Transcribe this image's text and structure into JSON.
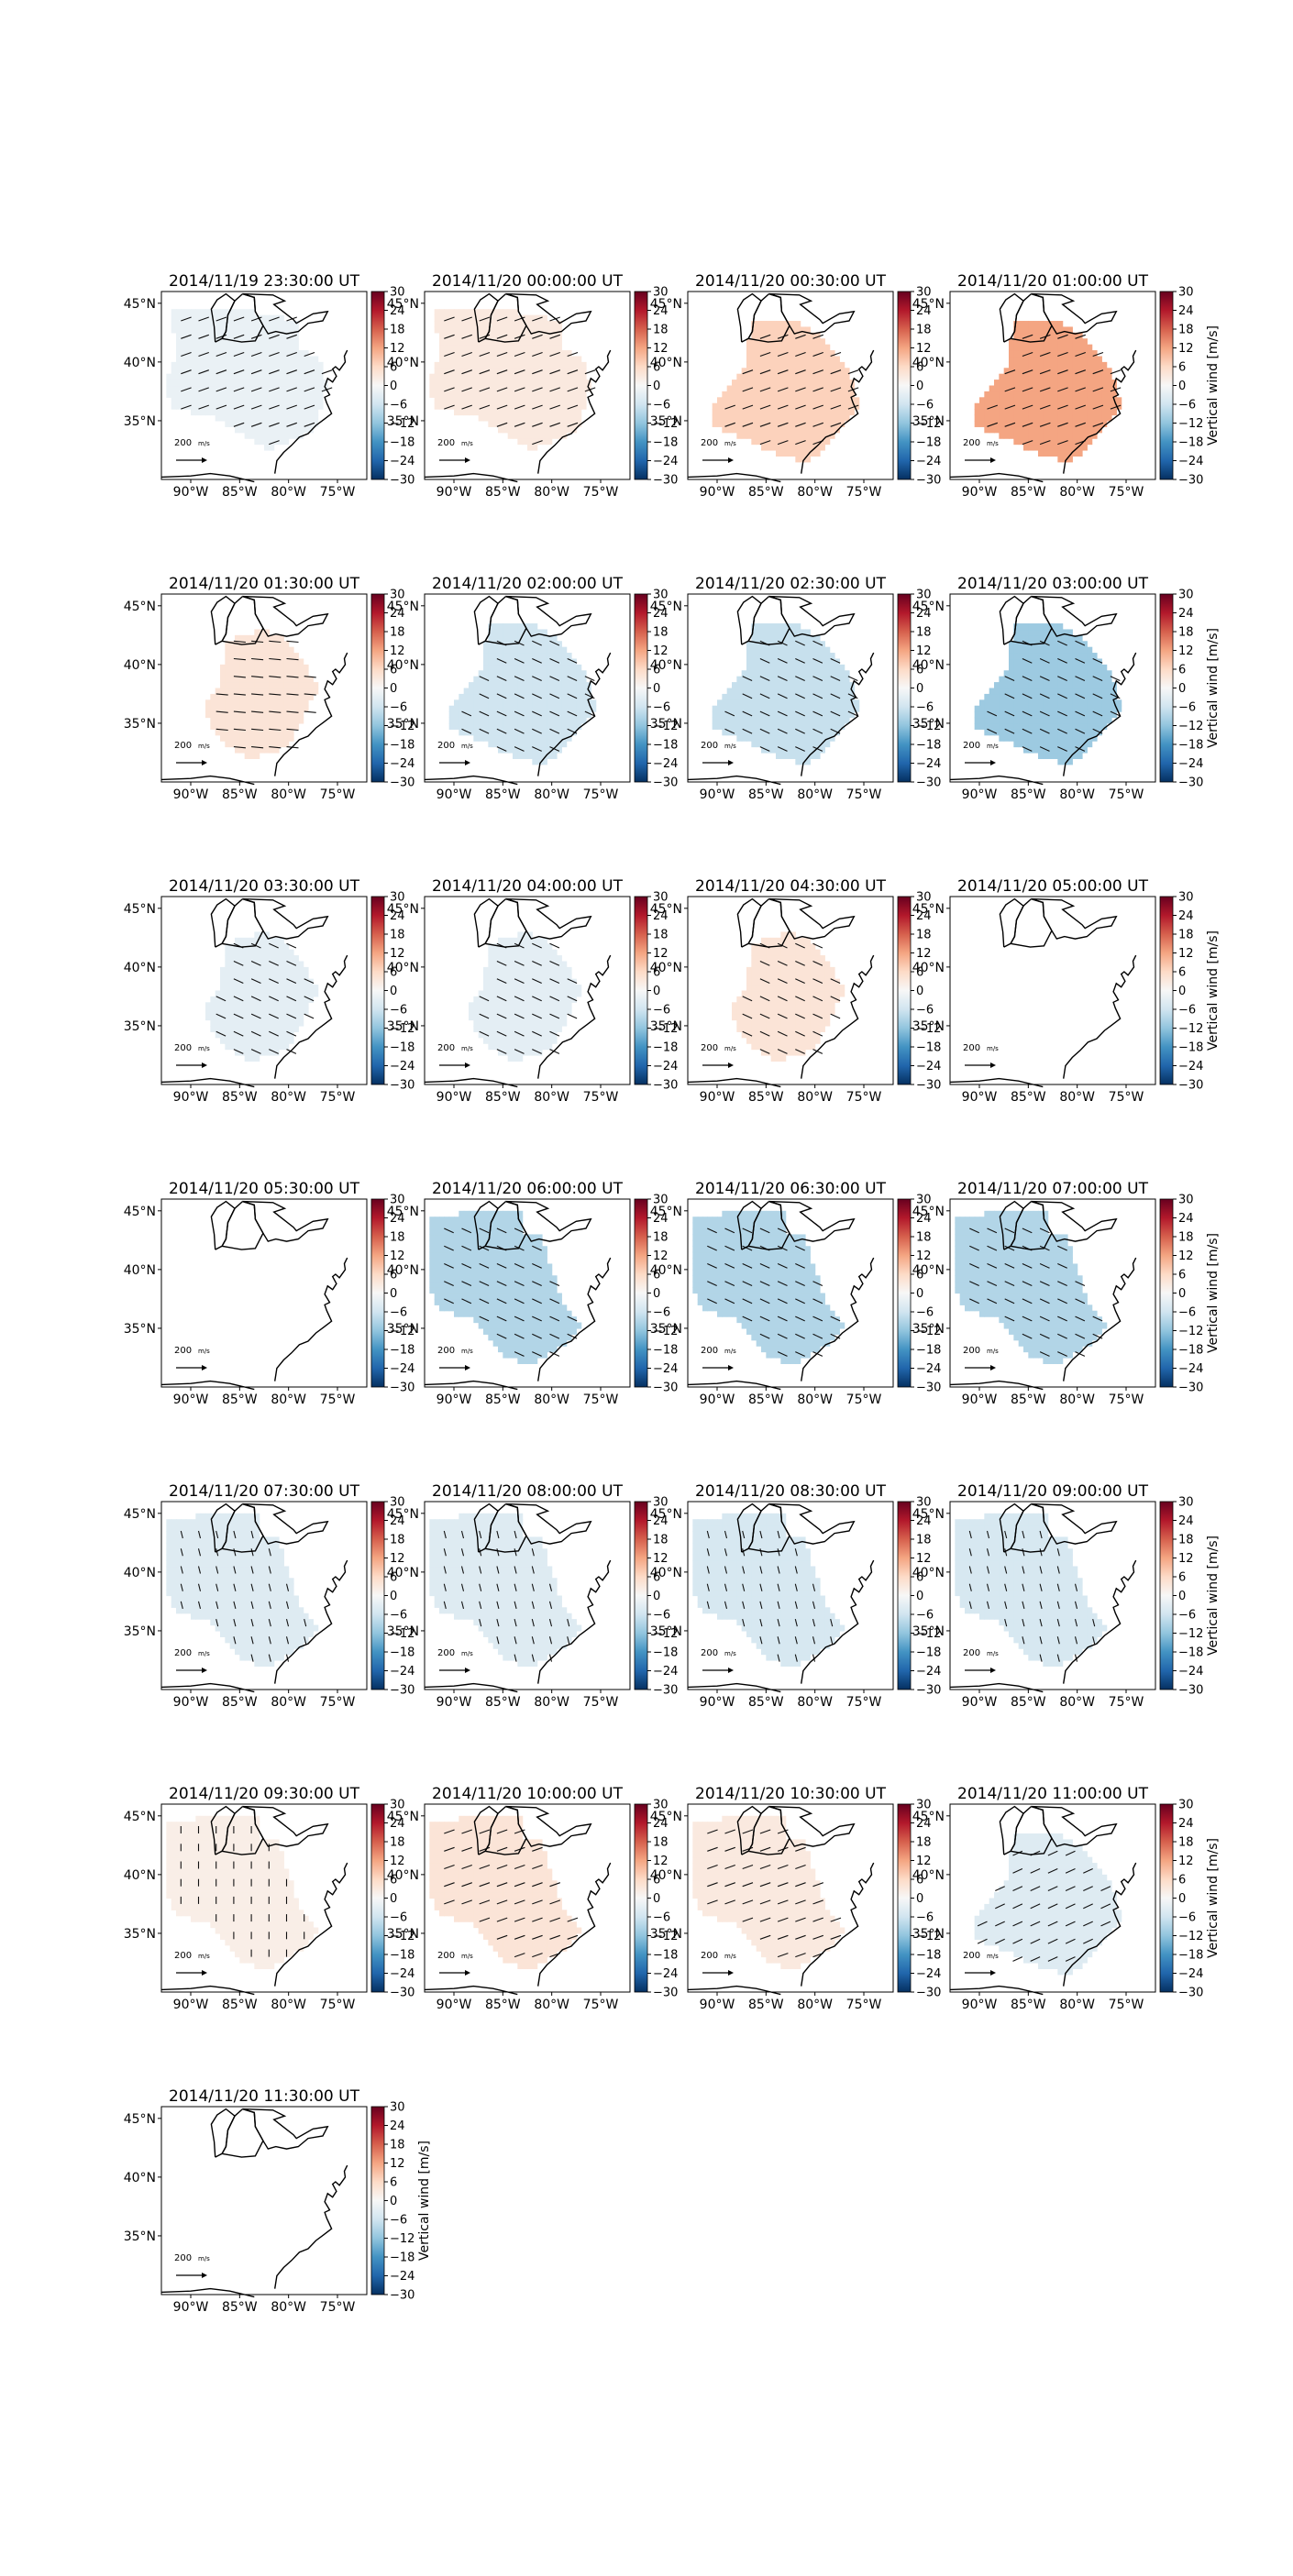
{
  "figure": {
    "colorbar": {
      "label": "Vertical wind [m/s]",
      "ticks": [
        30,
        24,
        18,
        12,
        6,
        0,
        -6,
        -12,
        -18,
        -24,
        -30
      ],
      "tick_labels": [
        "30",
        "24",
        "18",
        "12",
        "6",
        "0",
        "−6",
        "−12",
        "−18",
        "−24",
        "−30"
      ],
      "vmin": -30,
      "vmax": 30,
      "colormap": "RdBu_r"
    },
    "lat_ticks": [
      "45°N",
      "40°N",
      "35°N"
    ],
    "lon_ticks": [
      "90°W",
      "85°W",
      "80°W",
      "75°W"
    ],
    "reference_arrow": {
      "value": "200",
      "unit": "m/s"
    }
  },
  "chart_data": [
    {
      "type": "heatmap",
      "title": "2014/11/19 23:30:00 UT",
      "vertical_wind_ms": -2,
      "region": "A",
      "arrow_dir": "NE"
    },
    {
      "type": "heatmap",
      "title": "2014/11/20 00:00:00 UT",
      "vertical_wind_ms": 3,
      "region": "A",
      "arrow_dir": "NE"
    },
    {
      "type": "heatmap",
      "title": "2014/11/20 00:30:00 UT",
      "vertical_wind_ms": 7,
      "region": "B",
      "arrow_dir": "NE"
    },
    {
      "type": "heatmap",
      "title": "2014/11/20 01:00:00 UT",
      "vertical_wind_ms": 12,
      "region": "B",
      "arrow_dir": "NE"
    },
    {
      "type": "heatmap",
      "title": "2014/11/20 01:30:00 UT",
      "vertical_wind_ms": 4,
      "region": "C",
      "arrow_dir": "E"
    },
    {
      "type": "heatmap",
      "title": "2014/11/20 02:00:00 UT",
      "vertical_wind_ms": -6,
      "region": "B",
      "arrow_dir": "SE"
    },
    {
      "type": "heatmap",
      "title": "2014/11/20 02:30:00 UT",
      "vertical_wind_ms": -7,
      "region": "B",
      "arrow_dir": "SE"
    },
    {
      "type": "heatmap",
      "title": "2014/11/20 03:00:00 UT",
      "vertical_wind_ms": -11,
      "region": "B",
      "arrow_dir": "SE"
    },
    {
      "type": "heatmap",
      "title": "2014/11/20 03:30:00 UT",
      "vertical_wind_ms": -3,
      "region": "C",
      "arrow_dir": "SE"
    },
    {
      "type": "heatmap",
      "title": "2014/11/20 04:00:00 UT",
      "vertical_wind_ms": -3,
      "region": "C",
      "arrow_dir": "SE"
    },
    {
      "type": "heatmap",
      "title": "2014/11/20 04:30:00 UT",
      "vertical_wind_ms": 4,
      "region": "C",
      "arrow_dir": "SE"
    },
    {
      "type": "heatmap",
      "title": "2014/11/20 05:00:00 UT",
      "vertical_wind_ms": null,
      "region": "none",
      "arrow_dir": "SE"
    },
    {
      "type": "heatmap",
      "title": "2014/11/20 05:30:00 UT",
      "vertical_wind_ms": null,
      "region": "none",
      "arrow_dir": "SE"
    },
    {
      "type": "heatmap",
      "title": "2014/11/20 06:00:00 UT",
      "vertical_wind_ms": -9,
      "region": "D",
      "arrow_dir": "SE"
    },
    {
      "type": "heatmap",
      "title": "2014/11/20 06:30:00 UT",
      "vertical_wind_ms": -9,
      "region": "D",
      "arrow_dir": "SE"
    },
    {
      "type": "heatmap",
      "title": "2014/11/20 07:00:00 UT",
      "vertical_wind_ms": -9,
      "region": "D",
      "arrow_dir": "SE"
    },
    {
      "type": "heatmap",
      "title": "2014/11/20 07:30:00 UT",
      "vertical_wind_ms": -4,
      "region": "D",
      "arrow_dir": "S"
    },
    {
      "type": "heatmap",
      "title": "2014/11/20 08:00:00 UT",
      "vertical_wind_ms": -4,
      "region": "D",
      "arrow_dir": "S"
    },
    {
      "type": "heatmap",
      "title": "2014/11/20 08:30:00 UT",
      "vertical_wind_ms": -5,
      "region": "D",
      "arrow_dir": "S"
    },
    {
      "type": "heatmap",
      "title": "2014/11/20 09:00:00 UT",
      "vertical_wind_ms": -5,
      "region": "D",
      "arrow_dir": "S"
    },
    {
      "type": "heatmap",
      "title": "2014/11/20 09:30:00 UT",
      "vertical_wind_ms": 2,
      "region": "D",
      "arrow_dir": "N"
    },
    {
      "type": "heatmap",
      "title": "2014/11/20 10:00:00 UT",
      "vertical_wind_ms": 4,
      "region": "D",
      "arrow_dir": "NE"
    },
    {
      "type": "heatmap",
      "title": "2014/11/20 10:30:00 UT",
      "vertical_wind_ms": 3,
      "region": "D",
      "arrow_dir": "NE"
    },
    {
      "type": "heatmap",
      "title": "2014/11/20 11:00:00 UT",
      "vertical_wind_ms": -4,
      "region": "B",
      "arrow_dir": "SW"
    },
    {
      "type": "heatmap",
      "title": "2014/11/20 11:30:00 UT",
      "vertical_wind_ms": null,
      "region": "none",
      "arrow_dir": "SW"
    }
  ]
}
